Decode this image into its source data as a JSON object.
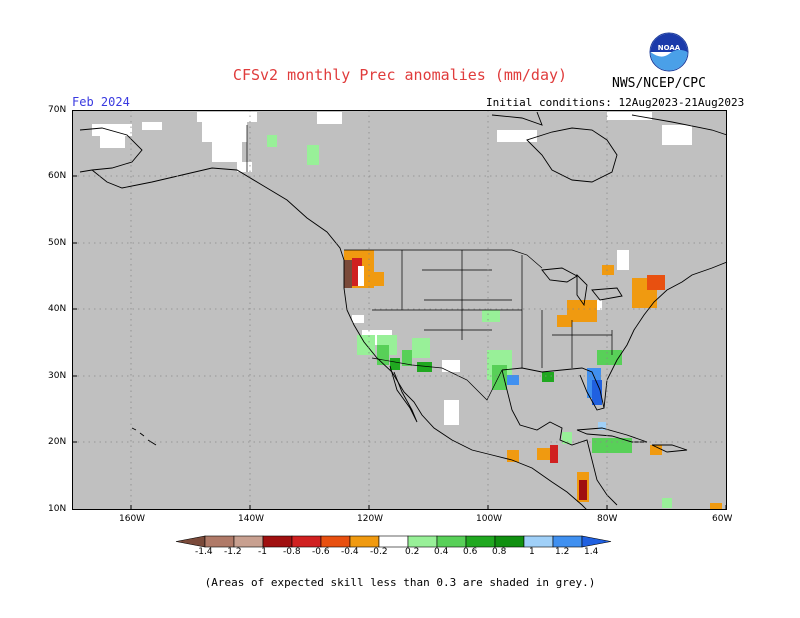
{
  "header": {
    "title": "CFSv2 monthly Prec anomalies (mm/day)",
    "agency": "NWS/NCEP/CPC",
    "valid_month": "Feb 2024",
    "initial_conditions": "Initial conditions: 12Aug2023-21Aug2023",
    "logo_text": "NOAA"
  },
  "map": {
    "lat_labels": [
      "70N",
      "60N",
      "50N",
      "40N",
      "30N",
      "20N",
      "10N"
    ],
    "lon_labels": [
      "160W",
      "140W",
      "120W",
      "100W",
      "80W",
      "60W"
    ],
    "land_color": "#c0c0c0",
    "ocean_color": "#c0c0c0"
  },
  "colorbar": {
    "labels": [
      "-1.4",
      "-1.2",
      "-1",
      "-0.8",
      "-0.6",
      "-0.4",
      "-0.2",
      "0.2",
      "0.4",
      "0.6",
      "0.8",
      "1",
      "1.2",
      "1.4"
    ],
    "colors": [
      "#7a4a3a",
      "#b07a68",
      "#c8a090",
      "#a01010",
      "#d02020",
      "#e85010",
      "#f09a10",
      "#ffffff",
      "#98f098",
      "#58d058",
      "#20a820",
      "#109010",
      "#a0d0f8",
      "#4090f0",
      "#2060e0"
    ]
  },
  "footnote": "(Areas of expected skill less than 0.3 are shaded in grey.)"
}
